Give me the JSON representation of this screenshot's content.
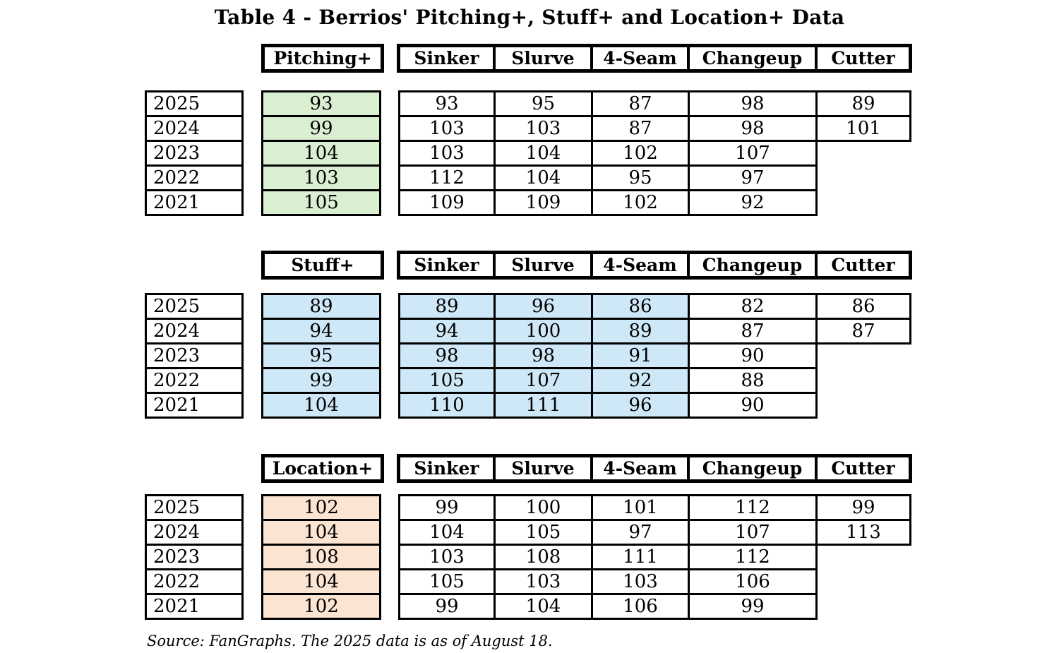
{
  "title": "Table 4 - Berrios' Pitching+,  Stuff+ and Location+ Data",
  "source_note": "Source: FanGraphs. The 2025 data is as of August 18.",
  "colors": {
    "green": "#daefd1",
    "blue": "#cfe8f7",
    "peach": "#fbe5d2"
  },
  "chart_data": {
    "type": "table",
    "title": "Table 4 - Berrios' Pitching+,  Stuff+ and Location+ Data",
    "source": "Source: FanGraphs. The 2025 data is as of August 18.",
    "years": [
      "2025",
      "2024",
      "2023",
      "2022",
      "2021"
    ],
    "pitch_columns": [
      "Sinker",
      "Slurve",
      "4-Seam",
      "Changeup",
      "Cutter"
    ],
    "sections": [
      {
        "metric": "Pitching+",
        "metric_fill": "#daefd1",
        "highlighted_pitch_columns": [],
        "rows": [
          {
            "year": "2025",
            "value": "93",
            "pitches": [
              "93",
              "95",
              "87",
              "98",
              "89"
            ]
          },
          {
            "year": "2024",
            "value": "99",
            "pitches": [
              "103",
              "103",
              "87",
              "98",
              "101"
            ]
          },
          {
            "year": "2023",
            "value": "104",
            "pitches": [
              "103",
              "104",
              "102",
              "107",
              null
            ]
          },
          {
            "year": "2022",
            "value": "103",
            "pitches": [
              "112",
              "104",
              "95",
              "97",
              null
            ]
          },
          {
            "year": "2021",
            "value": "105",
            "pitches": [
              "109",
              "109",
              "102",
              "92",
              null
            ]
          }
        ]
      },
      {
        "metric": "Stuff+",
        "metric_fill": "#cfe8f7",
        "highlighted_pitch_columns": [
          "Sinker",
          "Slurve",
          "4-Seam"
        ],
        "rows": [
          {
            "year": "2025",
            "value": "89",
            "pitches": [
              "89",
              "96",
              "86",
              "82",
              "86"
            ]
          },
          {
            "year": "2024",
            "value": "94",
            "pitches": [
              "94",
              "100",
              "89",
              "87",
              "87"
            ]
          },
          {
            "year": "2023",
            "value": "95",
            "pitches": [
              "98",
              "98",
              "91",
              "90",
              null
            ]
          },
          {
            "year": "2022",
            "value": "99",
            "pitches": [
              "105",
              "107",
              "92",
              "88",
              null
            ]
          },
          {
            "year": "2021",
            "value": "104",
            "pitches": [
              "110",
              "111",
              "96",
              "90",
              null
            ]
          }
        ]
      },
      {
        "metric": "Location+",
        "metric_fill": "#fbe5d2",
        "highlighted_pitch_columns": [],
        "rows": [
          {
            "year": "2025",
            "value": "102",
            "pitches": [
              "99",
              "100",
              "101",
              "112",
              "99"
            ]
          },
          {
            "year": "2024",
            "value": "104",
            "pitches": [
              "104",
              "105",
              "97",
              "107",
              "113"
            ]
          },
          {
            "year": "2023",
            "value": "108",
            "pitches": [
              "103",
              "108",
              "111",
              "112",
              null
            ]
          },
          {
            "year": "2022",
            "value": "104",
            "pitches": [
              "105",
              "103",
              "103",
              "106",
              null
            ]
          },
          {
            "year": "2021",
            "value": "102",
            "pitches": [
              "99",
              "104",
              "106",
              "99",
              null
            ]
          }
        ]
      }
    ]
  }
}
